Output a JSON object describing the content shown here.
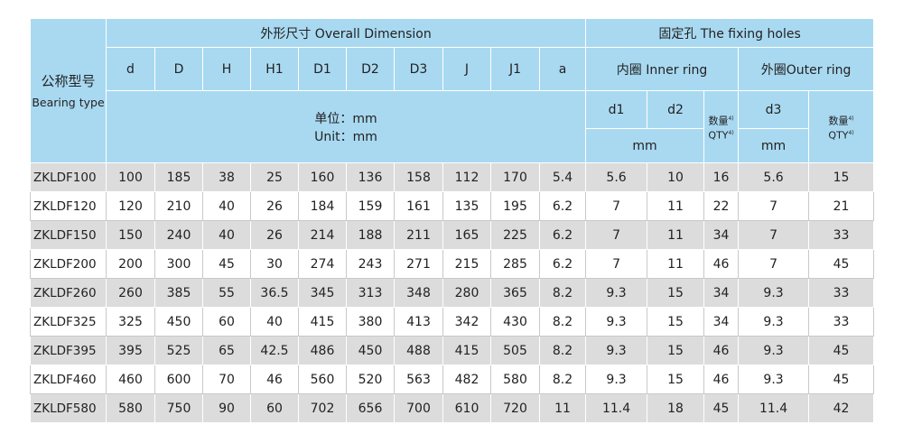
{
  "header": {
    "bearing_type_cn": "公称型号",
    "bearing_type_en": "Bearing type",
    "overall_dimension": "外形尺寸 Overall Dimension",
    "fixing_holes": "固定孔 The fixing holes",
    "columns": [
      "d",
      "D",
      "H",
      "H1",
      "D1",
      "D2",
      "D3",
      "J",
      "J1",
      "a"
    ],
    "inner_ring": "内圈 Inner ring",
    "outer_ring": "外圈Outer ring",
    "unit_cn": "单位：mm",
    "unit_en": "Unit：mm",
    "d1": "d1",
    "d2": "d2",
    "d3": "d3",
    "qty_cn": "数量",
    "qty_en": "QTY",
    "qty_note": "4)",
    "mm": "mm"
  },
  "rows": [
    [
      "ZKLDF100",
      100,
      185,
      38,
      25,
      160,
      136,
      158,
      112,
      170,
      5.4,
      5.6,
      10,
      16,
      5.6,
      15
    ],
    [
      "ZKLDF120",
      120,
      210,
      40,
      26,
      184,
      159,
      161,
      135,
      195,
      6.2,
      7,
      11,
      22,
      7,
      21
    ],
    [
      "ZKLDF150",
      150,
      240,
      40,
      26,
      214,
      188,
      211,
      165,
      225,
      6.2,
      7,
      11,
      34,
      7,
      33
    ],
    [
      "ZKLDF200",
      200,
      300,
      45,
      30,
      274,
      243,
      271,
      215,
      285,
      6.2,
      7,
      11,
      46,
      7,
      45
    ],
    [
      "ZKLDF260",
      260,
      385,
      55,
      36.5,
      345,
      313,
      348,
      280,
      365,
      8.2,
      9.3,
      15,
      34,
      9.3,
      33
    ],
    [
      "ZKLDF325",
      325,
      450,
      60,
      40,
      415,
      380,
      413,
      342,
      430,
      8.2,
      9.3,
      15,
      34,
      9.3,
      33
    ],
    [
      "ZKLDF395",
      395,
      525,
      65,
      42.5,
      486,
      450,
      488,
      415,
      505,
      8.2,
      9.3,
      15,
      46,
      9.3,
      45
    ],
    [
      "ZKLDF460",
      460,
      600,
      70,
      46,
      560,
      520,
      563,
      482,
      580,
      8.2,
      9.3,
      15,
      46,
      9.3,
      45
    ],
    [
      "ZKLDF580",
      580,
      750,
      90,
      60,
      702,
      656,
      700,
      610,
      720,
      11,
      11.4,
      18,
      45,
      11.4,
      42
    ]
  ]
}
